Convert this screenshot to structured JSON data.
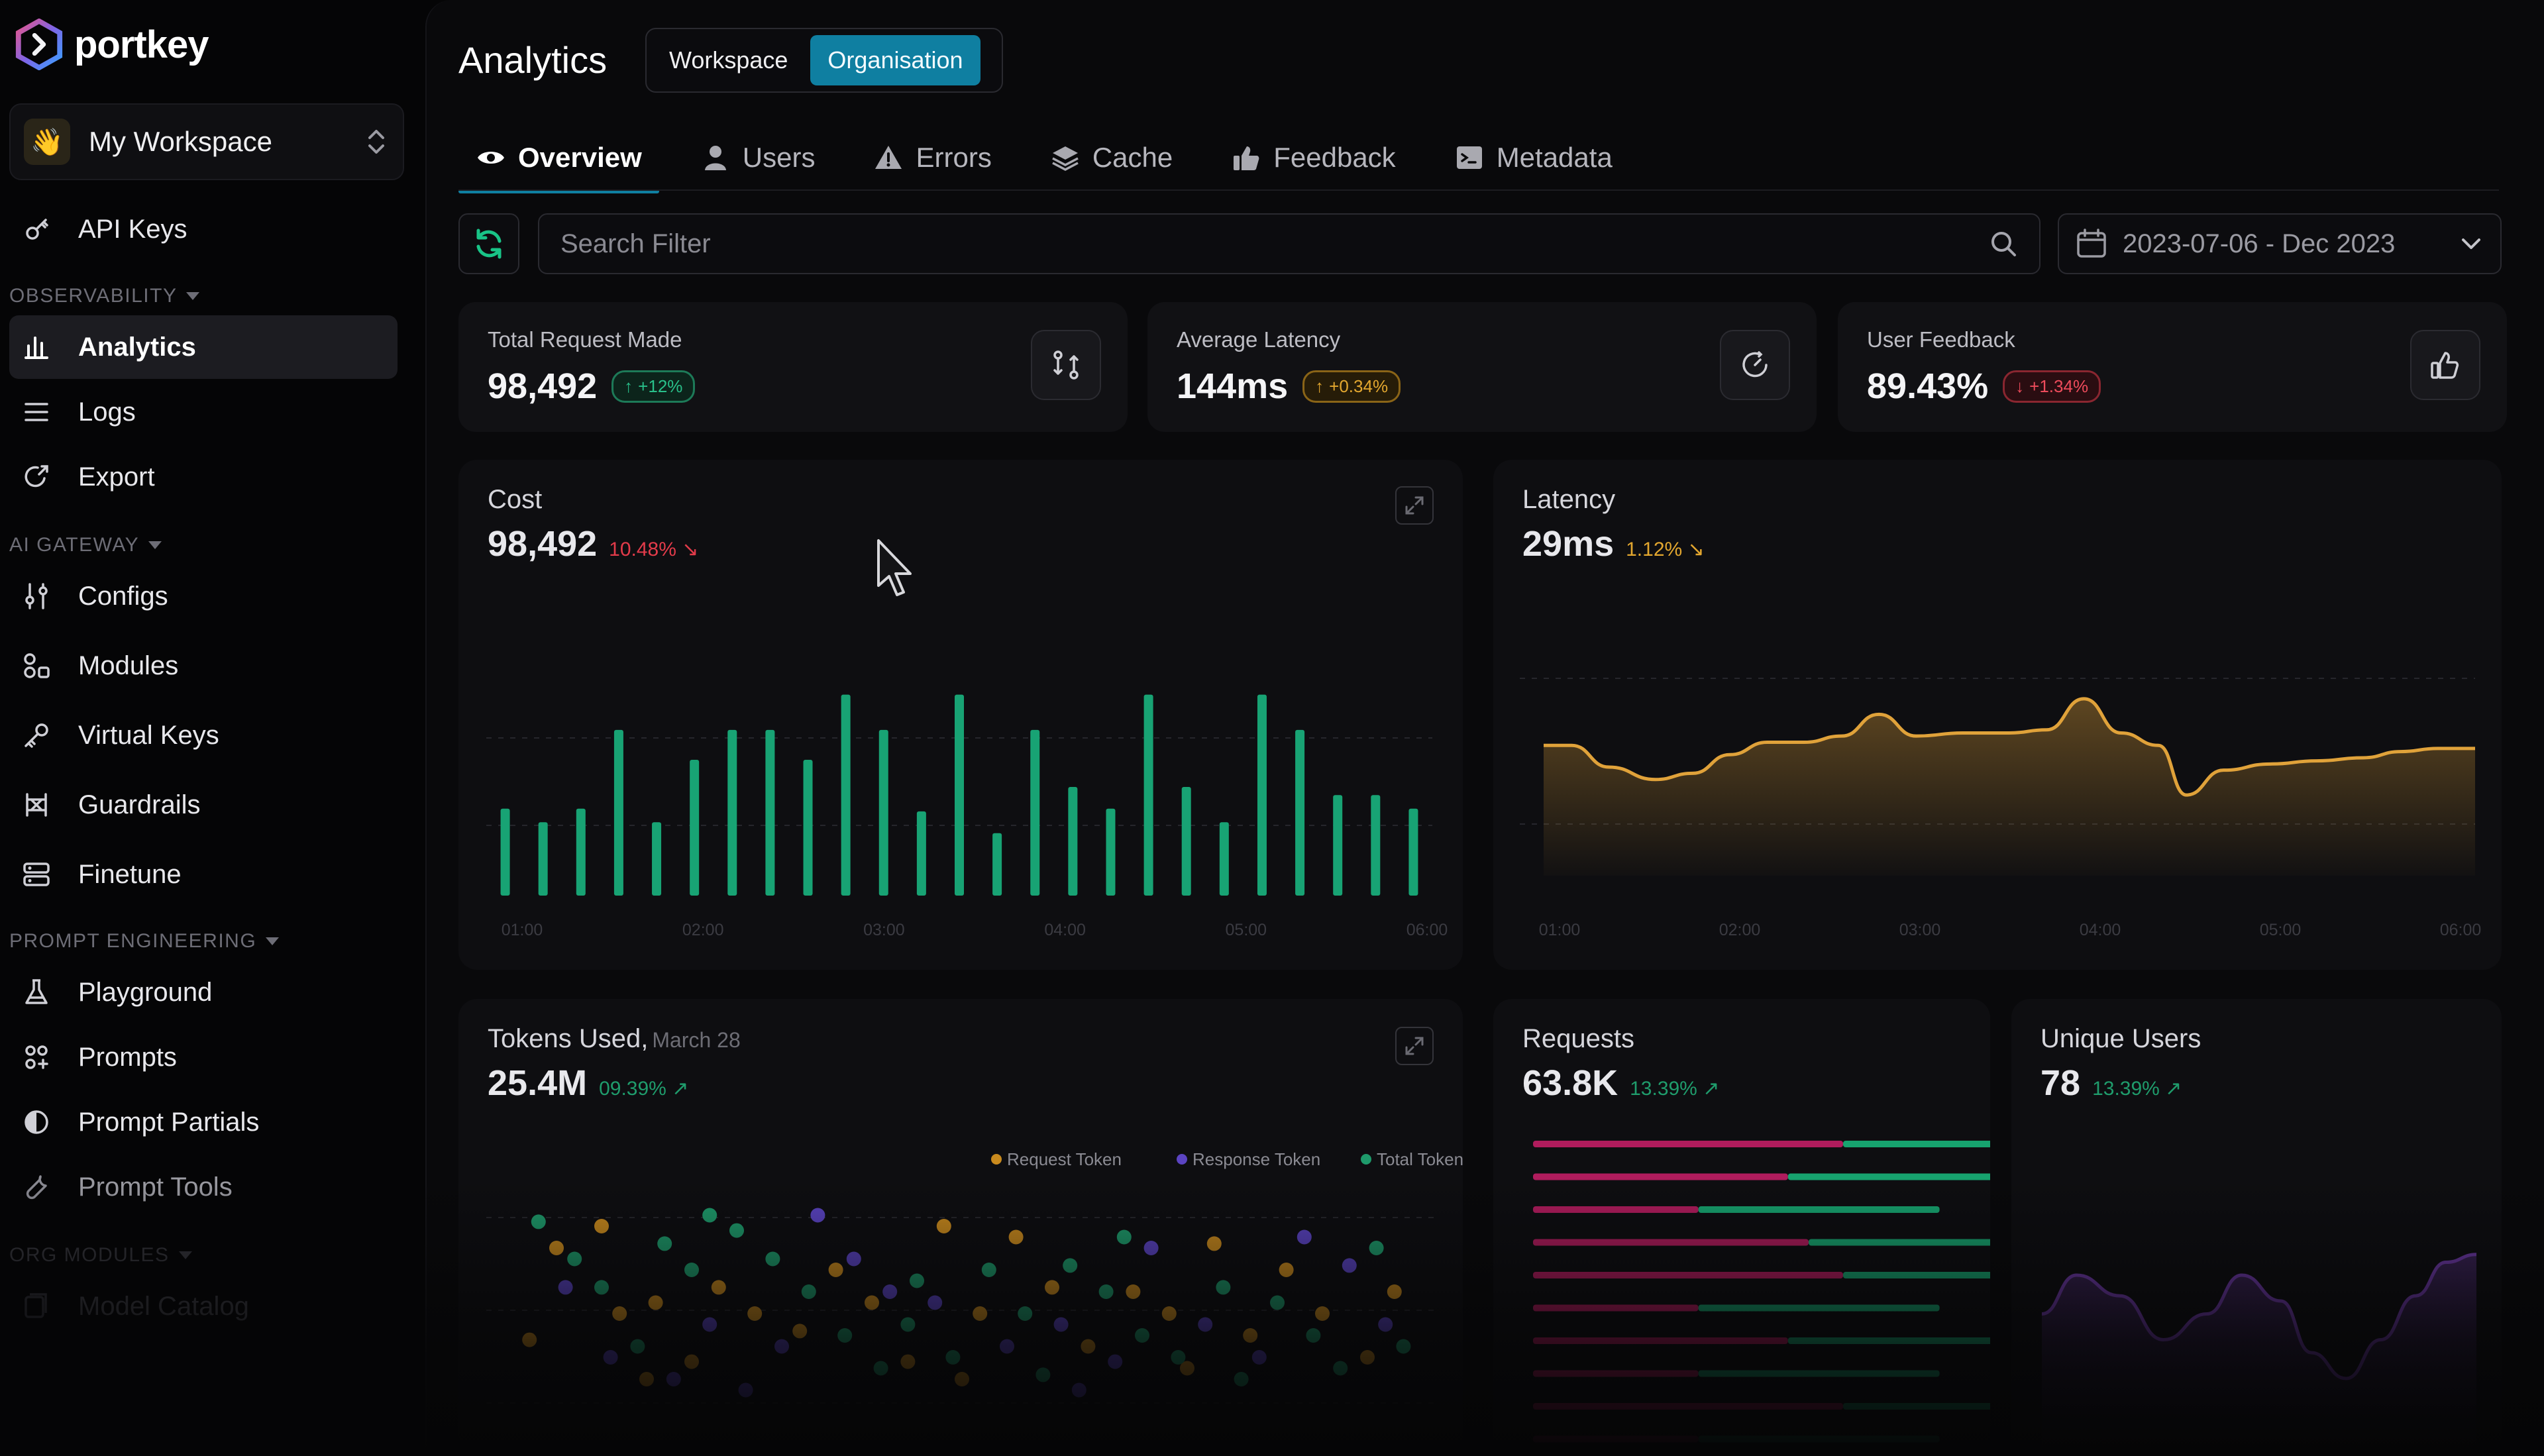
{
  "brand": {
    "name": "portkey"
  },
  "workspace": {
    "name": "My Workspace"
  },
  "sidebar": {
    "top_items": [
      {
        "label": "API Keys",
        "icon": "key-icon"
      }
    ],
    "sections": [
      {
        "title": "OBSERVABILITY",
        "items": [
          {
            "label": "Analytics",
            "icon": "chart-icon",
            "active": true
          },
          {
            "label": "Logs",
            "icon": "list-icon"
          },
          {
            "label": "Export",
            "icon": "export-icon"
          }
        ]
      },
      {
        "title": "AI GATEWAY",
        "items": [
          {
            "label": "Configs",
            "icon": "sliders-icon"
          },
          {
            "label": "Modules",
            "icon": "modules-icon"
          },
          {
            "label": "Virtual Keys",
            "icon": "key-icon"
          },
          {
            "label": "Guardrails",
            "icon": "guardrails-icon"
          },
          {
            "label": "Finetune",
            "icon": "server-icon"
          }
        ]
      },
      {
        "title": "PROMPT ENGINEERING",
        "items": [
          {
            "label": "Playground",
            "icon": "flask-icon"
          },
          {
            "label": "Prompts",
            "icon": "prompts-icon"
          },
          {
            "label": "Prompt Partials",
            "icon": "partials-icon"
          },
          {
            "label": "Prompt Tools",
            "icon": "tools-icon"
          }
        ]
      },
      {
        "title": "ORG MODULES",
        "items": [
          {
            "label": "Model Catalog",
            "icon": "catalog-icon"
          }
        ]
      }
    ]
  },
  "header": {
    "title": "Analytics",
    "scope_options": [
      "Workspace",
      "Organisation"
    ],
    "scope_selected": "Organisation"
  },
  "tabs": [
    {
      "label": "Overview",
      "icon": "eye-icon",
      "active": true
    },
    {
      "label": "Users",
      "icon": "user-icon"
    },
    {
      "label": "Errors",
      "icon": "warning-icon"
    },
    {
      "label": "Cache",
      "icon": "cache-icon"
    },
    {
      "label": "Feedback",
      "icon": "thumbs-up-icon"
    },
    {
      "label": "Metadata",
      "icon": "metadata-icon"
    }
  ],
  "filters": {
    "search_placeholder": "Search Filter",
    "date_range": "2023-07-06 - Dec 2023"
  },
  "stats": [
    {
      "label": "Total Request Made",
      "value": "98,492",
      "change": "+12%",
      "trend": "up",
      "icon": "git-compare-icon"
    },
    {
      "label": "Average Latency",
      "value": "144ms",
      "change": "+0.34%",
      "trend": "warn",
      "icon": "timer-icon"
    },
    {
      "label": "User Feedback",
      "value": "89.43%",
      "change": "+1.34%",
      "trend": "down",
      "icon": "thumbs-up-icon"
    }
  ],
  "colors": {
    "accent": "#0f7fa1",
    "cost_bar": "#18a374",
    "latency_line": "#e0a23a",
    "request_token": "#c98a1e",
    "response_token": "#5b44c2",
    "total_token": "#1e9a6b",
    "requests_pink": "#b01c5d",
    "requests_green": "#17a36f",
    "users_line": "#6e3aa8"
  },
  "charts": {
    "cost": {
      "title": "Cost",
      "value": "98,492",
      "change": "10.48%",
      "chart_data": {
        "type": "bar",
        "x_ticks": [
          "01:00",
          "02:00",
          "03:00",
          "04:00",
          "05:00",
          "06:00"
        ],
        "values": [
          64,
          54,
          64,
          122,
          54,
          100,
          122,
          122,
          100,
          148,
          122,
          62,
          148,
          46,
          122,
          80,
          64,
          148,
          80,
          54,
          148,
          122,
          74,
          74,
          64
        ],
        "ylim": [
          0,
          160
        ]
      }
    },
    "latency": {
      "title": "Latency",
      "value": "29ms",
      "change": "1.12%",
      "chart_data": {
        "type": "area",
        "x_ticks": [
          "01:00",
          "02:00",
          "03:00",
          "04:00",
          "05:00",
          "06:00"
        ],
        "points": [
          [
            0,
            84
          ],
          [
            0.03,
            84
          ],
          [
            0.07,
            70
          ],
          [
            0.12,
            62
          ],
          [
            0.16,
            66
          ],
          [
            0.2,
            78
          ],
          [
            0.24,
            86
          ],
          [
            0.28,
            86
          ],
          [
            0.32,
            90
          ],
          [
            0.36,
            104
          ],
          [
            0.4,
            90
          ],
          [
            0.45,
            92
          ],
          [
            0.5,
            92
          ],
          [
            0.54,
            94
          ],
          [
            0.58,
            114
          ],
          [
            0.62,
            92
          ],
          [
            0.66,
            84
          ],
          [
            0.69,
            52
          ],
          [
            0.73,
            68
          ],
          [
            0.78,
            72
          ],
          [
            0.83,
            74
          ],
          [
            0.88,
            76
          ],
          [
            0.92,
            80
          ],
          [
            0.96,
            82
          ],
          [
            1,
            82
          ]
        ],
        "ylim": [
          0,
          140
        ]
      }
    },
    "tokens": {
      "title": "Tokens Used,",
      "subtitle": "March 28",
      "value": "25.4M",
      "change": "09.39%",
      "legend": [
        "Request Token",
        "Response Token",
        "Total Token"
      ],
      "chart_data": {
        "type": "scatter",
        "series": [
          {
            "name": "Request Token",
            "points": [
              [
                0.02,
                0.38
              ],
              [
                0.05,
                0.8
              ],
              [
                0.1,
                0.9
              ],
              [
                0.12,
                0.5
              ],
              [
                0.16,
                0.55
              ],
              [
                0.2,
                0.28
              ],
              [
                0.23,
                0.62
              ],
              [
                0.27,
                0.5
              ],
              [
                0.32,
                0.42
              ],
              [
                0.36,
                0.7
              ],
              [
                0.4,
                0.55
              ],
              [
                0.44,
                0.28
              ],
              [
                0.48,
                0.9
              ],
              [
                0.52,
                0.5
              ],
              [
                0.56,
                0.85
              ],
              [
                0.6,
                0.62
              ],
              [
                0.64,
                0.35
              ],
              [
                0.69,
                0.6
              ],
              [
                0.73,
                0.5
              ],
              [
                0.78,
                0.82
              ],
              [
                0.82,
                0.4
              ],
              [
                0.86,
                0.7
              ],
              [
                0.9,
                0.5
              ],
              [
                0.95,
                0.3
              ],
              [
                0.98,
                0.6
              ],
              [
                0.15,
                0.2
              ],
              [
                0.5,
                0.2
              ],
              [
                0.75,
                0.25
              ]
            ]
          },
          {
            "name": "Response Token",
            "points": [
              [
                0.06,
                0.62
              ],
              [
                0.11,
                0.3
              ],
              [
                0.18,
                0.2
              ],
              [
                0.22,
                0.45
              ],
              [
                0.3,
                0.35
              ],
              [
                0.34,
                0.95
              ],
              [
                0.38,
                0.75
              ],
              [
                0.42,
                0.6
              ],
              [
                0.47,
                0.55
              ],
              [
                0.55,
                0.35
              ],
              [
                0.61,
                0.45
              ],
              [
                0.67,
                0.28
              ],
              [
                0.71,
                0.8
              ],
              [
                0.77,
                0.45
              ],
              [
                0.83,
                0.3
              ],
              [
                0.88,
                0.85
              ],
              [
                0.93,
                0.72
              ],
              [
                0.97,
                0.45
              ],
              [
                0.26,
                0.15
              ],
              [
                0.63,
                0.15
              ]
            ]
          },
          {
            "name": "Total Token",
            "points": [
              [
                0.03,
                0.92
              ],
              [
                0.07,
                0.75
              ],
              [
                0.1,
                0.62
              ],
              [
                0.14,
                0.35
              ],
              [
                0.17,
                0.82
              ],
              [
                0.2,
                0.7
              ],
              [
                0.22,
                0.95
              ],
              [
                0.25,
                0.88
              ],
              [
                0.29,
                0.75
              ],
              [
                0.33,
                0.6
              ],
              [
                0.37,
                0.4
              ],
              [
                0.41,
                0.25
              ],
              [
                0.45,
                0.65
              ],
              [
                0.49,
                0.3
              ],
              [
                0.53,
                0.7
              ],
              [
                0.57,
                0.5
              ],
              [
                0.59,
                0.22
              ],
              [
                0.62,
                0.72
              ],
              [
                0.66,
                0.6
              ],
              [
                0.7,
                0.4
              ],
              [
                0.74,
                0.3
              ],
              [
                0.79,
                0.62
              ],
              [
                0.81,
                0.2
              ],
              [
                0.85,
                0.55
              ],
              [
                0.89,
                0.4
              ],
              [
                0.92,
                0.25
              ],
              [
                0.96,
                0.8
              ],
              [
                0.99,
                0.35
              ],
              [
                0.44,
                0.45
              ],
              [
                0.68,
                0.85
              ]
            ]
          }
        ]
      }
    },
    "requests": {
      "title": "Requests",
      "value": "63.8K",
      "change": "13.39%",
      "chart_data": {
        "type": "bar",
        "orientation": "horizontal",
        "series": [
          {
            "name": "pink",
            "values": [
              45,
              37,
              24,
              40,
              45,
              24,
              37,
              24,
              45,
              24
            ]
          },
          {
            "name": "green",
            "values": [
              53,
              48,
              35,
              45,
              57,
              35,
              48,
              35,
              57,
              35
            ]
          }
        ]
      }
    },
    "users": {
      "title": "Unique Users",
      "value": "78",
      "change": "13.39%",
      "chart_data": {
        "type": "area",
        "points": [
          [
            0,
            0.55
          ],
          [
            0.08,
            0.7
          ],
          [
            0.18,
            0.62
          ],
          [
            0.28,
            0.45
          ],
          [
            0.38,
            0.55
          ],
          [
            0.46,
            0.7
          ],
          [
            0.55,
            0.6
          ],
          [
            0.62,
            0.4
          ],
          [
            0.7,
            0.3
          ],
          [
            0.78,
            0.45
          ],
          [
            0.86,
            0.62
          ],
          [
            0.93,
            0.75
          ],
          [
            1,
            0.78
          ]
        ]
      }
    }
  }
}
